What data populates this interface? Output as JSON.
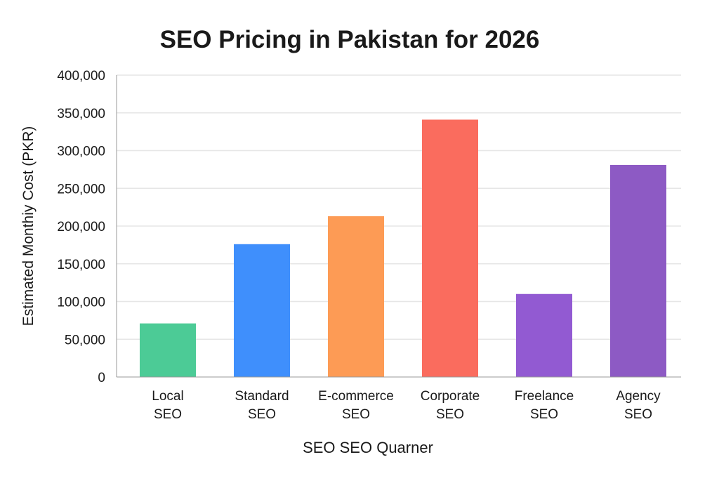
{
  "chart_data": {
    "type": "bar",
    "title": "SEO Pricing in Pakistan for 2026",
    "xlabel": "SEO SEO Quarner",
    "ylabel": "Estimated Monthiy Cost (PKR)",
    "categories": [
      [
        "Local",
        "SEO"
      ],
      [
        "Standard",
        "SEO"
      ],
      [
        "E-commerce",
        "SEO"
      ],
      [
        "Corporate",
        "SEO"
      ],
      [
        "Freelance",
        "SEO"
      ],
      [
        "Agency",
        "SEO"
      ]
    ],
    "values": [
      71000,
      176000,
      213000,
      341000,
      110000,
      281000
    ],
    "colors": [
      "#4ccb96",
      "#3f8ffc",
      "#fd9b55",
      "#fa6c5e",
      "#925ad2",
      "#8d5ac4"
    ],
    "ylim": [
      0,
      400000
    ],
    "yticks": [
      "0",
      "50,000",
      "100,000",
      "150,000",
      "200,000",
      "250,000",
      "300,000",
      "350,000",
      "400,000"
    ],
    "ytick_values": [
      0,
      50000,
      100000,
      150000,
      200000,
      250000,
      300000,
      350000,
      400000
    ],
    "grid": true,
    "legend": "none"
  }
}
